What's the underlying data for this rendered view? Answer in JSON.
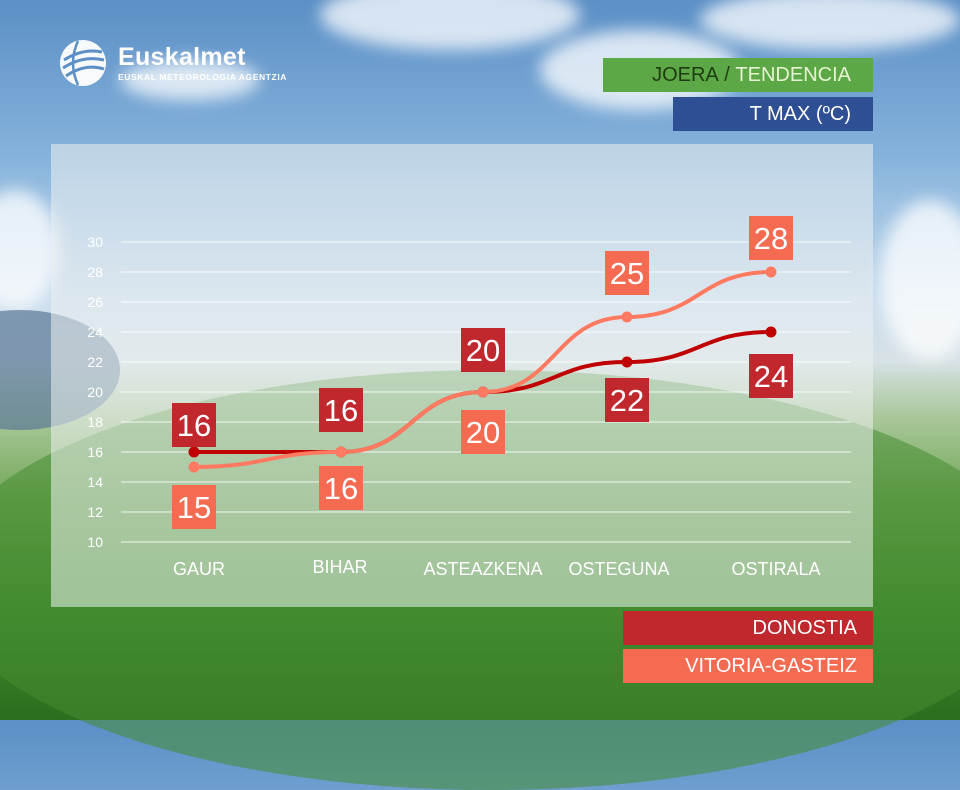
{
  "logo": {
    "title": "Euskalmet",
    "subtitle": "EUSKAL METEOROLOGIA AGENTZIA"
  },
  "header": {
    "trend_eu": "JOERA",
    "separator": " / ",
    "trend_es": "TENDENCIA",
    "variable": "T MAX (ºC)"
  },
  "colors": {
    "donostia": "#c0282d",
    "donostia_line": "#c00000",
    "vitoria": "#f46b52",
    "vitoria_line": "#ff7a60",
    "trend_tag": "#5da846",
    "variable_tag": "#2e4f94"
  },
  "chart_data": {
    "type": "line",
    "categories": [
      "GAUR",
      "BIHAR",
      "ASTEAZKENA",
      "OSTEGUNA",
      "OSTIRALA"
    ],
    "ylim": [
      10,
      30
    ],
    "yticks": [
      "10",
      "12",
      "14",
      "16",
      "18",
      "20",
      "22",
      "24",
      "26",
      "28",
      "30"
    ],
    "grid": true,
    "series": [
      {
        "name": "DONOSTIA",
        "values": [
          16,
          16,
          20,
          22,
          24
        ]
      },
      {
        "name": "VITORIA-GASTEIZ",
        "values": [
          15,
          16,
          20,
          25,
          28
        ]
      }
    ]
  }
}
